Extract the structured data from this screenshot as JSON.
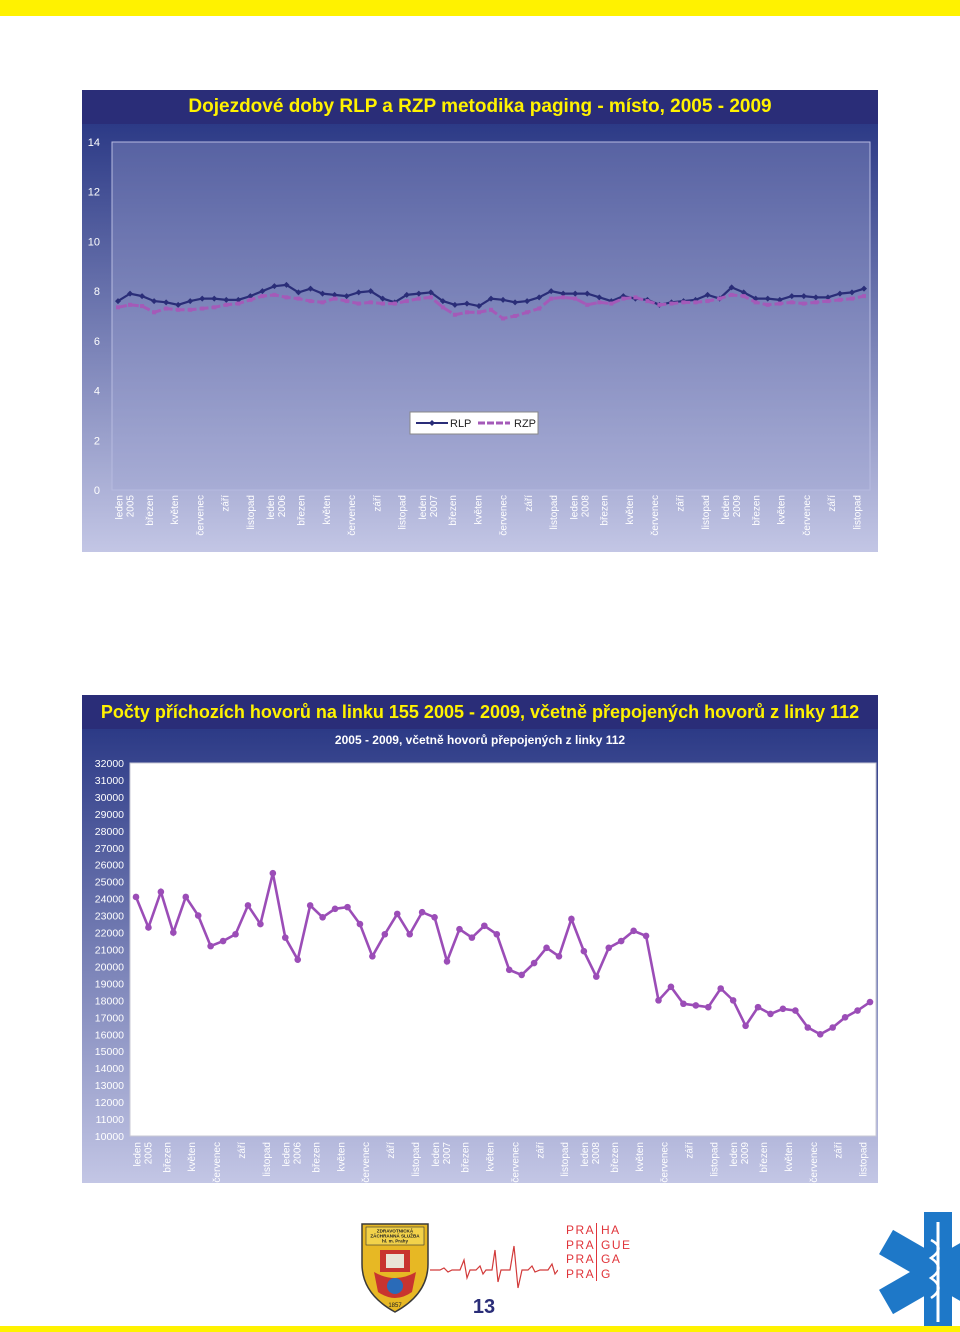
{
  "colors": {
    "title_bar": "#2a2d78",
    "title_text": "#fff200",
    "rlp": "#2a2d78",
    "rzp": "#a45ab8",
    "calls": "#9b4db7",
    "panel_bg_top": "#2c3a86",
    "panel_bg_bottom": "#c3c6e5"
  },
  "footer": {
    "logo_text": [
      "ZDRAVOTNICKÁ",
      "ZÁCHRANNÁ SLUŽBA",
      "hl. m. Prahy",
      "1857"
    ],
    "praha_left": [
      "PRA",
      "PRA",
      "PRA",
      "PRA"
    ],
    "praha_right": [
      "HA",
      "GUE",
      "GA",
      "G"
    ],
    "page_number": "13"
  },
  "chart_data": [
    {
      "type": "line",
      "title": "Dojezdové doby RLP a RZP metodika paging - místo, 2005 - 2009",
      "legend_position": "inside-bottom-center",
      "ylim": [
        0,
        14
      ],
      "yticks": [
        0,
        2,
        4,
        6,
        8,
        10,
        12,
        14
      ],
      "x_tick_labels": [
        "leden 2005",
        "březen",
        "květen",
        "červenec",
        "září",
        "listopad",
        "leden 2006",
        "březen",
        "květen",
        "červenec",
        "září",
        "listopad",
        "leden 2007",
        "březen",
        "květen",
        "červenec",
        "září",
        "listopad",
        "leden 2008",
        "březen",
        "květen",
        "červenec",
        "září",
        "listopad",
        "leden 2009",
        "březen",
        "květen",
        "červenec",
        "září",
        "listopad"
      ],
      "series": [
        {
          "name": "RLP",
          "values": [
            7.6,
            7.9,
            7.8,
            7.6,
            7.55,
            7.45,
            7.6,
            7.7,
            7.7,
            7.65,
            7.65,
            7.8,
            8.0,
            8.2,
            8.25,
            7.95,
            8.1,
            7.9,
            7.85,
            7.8,
            7.95,
            8.0,
            7.7,
            7.55,
            7.85,
            7.9,
            7.95,
            7.6,
            7.45,
            7.5,
            7.4,
            7.7,
            7.65,
            7.55,
            7.6,
            7.75,
            8.0,
            7.9,
            7.9,
            7.9,
            7.75,
            7.6,
            7.8,
            7.7,
            7.65,
            7.45,
            7.55,
            7.6,
            7.65,
            7.85,
            7.7,
            8.15,
            7.95,
            7.7,
            7.7,
            7.65,
            7.8,
            7.8,
            7.75,
            7.75,
            7.9,
            7.95,
            8.1
          ]
        },
        {
          "name": "RZP",
          "values": [
            7.35,
            7.45,
            7.4,
            7.15,
            7.3,
            7.25,
            7.25,
            7.3,
            7.35,
            7.45,
            7.5,
            7.65,
            7.8,
            7.85,
            7.75,
            7.7,
            7.6,
            7.55,
            7.7,
            7.6,
            7.5,
            7.55,
            7.5,
            7.5,
            7.6,
            7.7,
            7.75,
            7.35,
            7.05,
            7.15,
            7.15,
            7.25,
            6.9,
            7.0,
            7.15,
            7.3,
            7.7,
            7.75,
            7.7,
            7.45,
            7.55,
            7.5,
            7.7,
            7.75,
            7.6,
            7.45,
            7.5,
            7.55,
            7.55,
            7.6,
            7.7,
            7.85,
            7.8,
            7.55,
            7.45,
            7.5,
            7.55,
            7.5,
            7.55,
            7.6,
            7.65,
            7.7,
            7.8
          ]
        }
      ]
    },
    {
      "type": "line",
      "title": "Počty příchozích hovorů na linku 155 2005 - 2009, včetně přepojených hovorů z linky 112",
      "subtitle": "2005 - 2009, včetně hovorů přepojených z linky 112",
      "ylim": [
        10000,
        32000
      ],
      "yticks": [
        10000,
        11000,
        12000,
        13000,
        14000,
        15000,
        16000,
        17000,
        18000,
        19000,
        20000,
        21000,
        22000,
        23000,
        24000,
        25000,
        26000,
        27000,
        28000,
        29000,
        30000,
        31000,
        32000
      ],
      "x_tick_labels": [
        "leden 2005",
        "březen",
        "květen",
        "červenec",
        "září",
        "listopad",
        "leden 2006",
        "březen",
        "květen",
        "červenec",
        "září",
        "listopad",
        "leden 2007",
        "březen",
        "květen",
        "červenec",
        "září",
        "listopad",
        "leden 2008",
        "březen",
        "květen",
        "červenec",
        "září",
        "listopad",
        "leden 2009",
        "březen",
        "květen",
        "červenec",
        "září",
        "listopad"
      ],
      "series": [
        {
          "name": "",
          "values": [
            24100,
            22300,
            24400,
            22000,
            24100,
            23000,
            21200,
            21500,
            21900,
            23600,
            22500,
            25500,
            21700,
            20400,
            23600,
            22900,
            23400,
            23500,
            22500,
            20600,
            21900,
            23100,
            21900,
            23200,
            22900,
            20300,
            22200,
            21700,
            22400,
            21900,
            19800,
            19500,
            20200,
            21100,
            20600,
            22800,
            20900,
            19400,
            21100,
            21500,
            22100,
            21800,
            18000,
            18800,
            17800,
            17700,
            17600,
            18700,
            18000,
            16500,
            17600,
            17200,
            17500,
            17400,
            16400,
            16000,
            16400,
            17000,
            17400,
            17900
          ]
        }
      ]
    }
  ]
}
